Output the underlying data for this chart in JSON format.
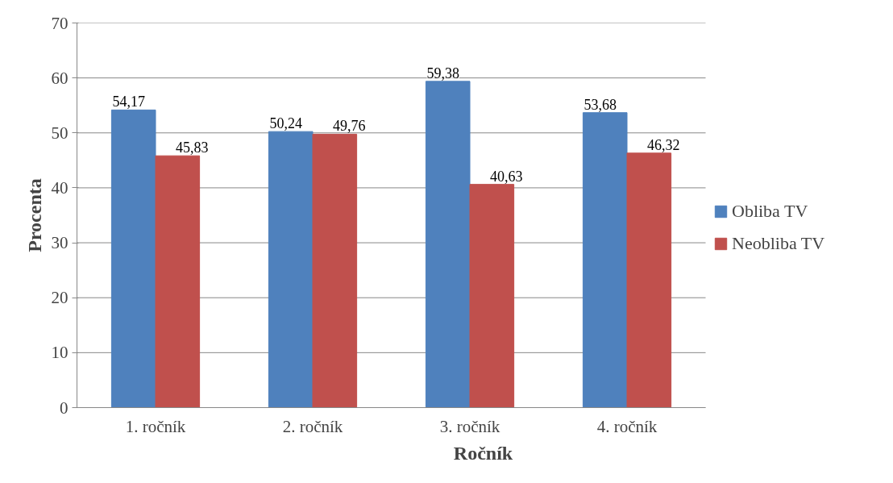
{
  "chart_data": {
    "type": "bar",
    "xlabel": "Ročník",
    "ylabel": "Procenta",
    "categories": [
      "1. ročník",
      "2. ročník",
      "3. ročník",
      "4. ročník"
    ],
    "series": [
      {
        "name": "Obliba TV",
        "color": "#4f81bd",
        "values": [
          54.17,
          50.24,
          59.38,
          53.68
        ],
        "value_labels": [
          "54,17",
          "50,24",
          "59,38",
          "53,68"
        ]
      },
      {
        "name": "Neobliba TV",
        "color": "#c0504d",
        "values": [
          45.83,
          49.76,
          40.63,
          46.32
        ],
        "value_labels": [
          "45,83",
          "49,76",
          "40,63",
          "46,32"
        ]
      }
    ],
    "ylim": [
      0,
      70
    ],
    "yticks": [
      0,
      10,
      20,
      30,
      40,
      50,
      60,
      70
    ],
    "grid": "y",
    "legend": "right"
  }
}
